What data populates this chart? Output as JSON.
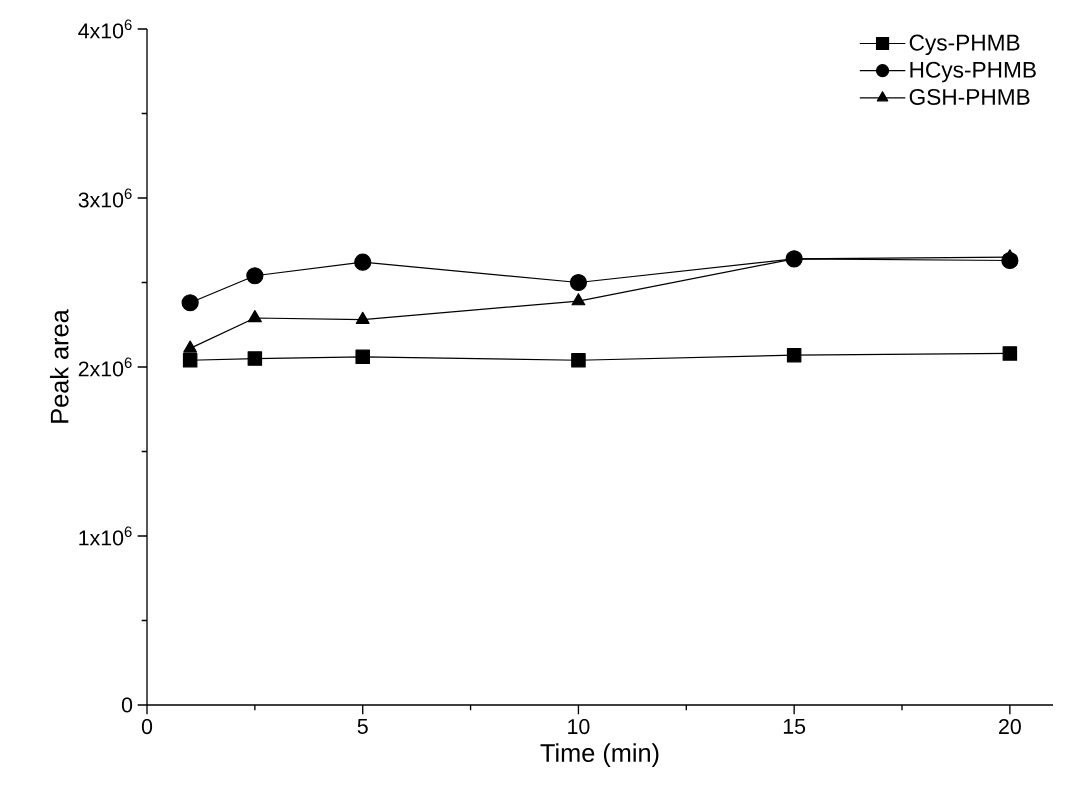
{
  "chart_data": {
    "type": "line",
    "xlabel": "Time (min)",
    "ylabel": "Peak area",
    "x": [
      1,
      2.5,
      5,
      10,
      15,
      20
    ],
    "series": [
      {
        "name": "Cys-PHMB",
        "color": "#000000",
        "marker": "square",
        "values": [
          2040000,
          2050000,
          2060000,
          2040000,
          2070000,
          2080000
        ]
      },
      {
        "name": "HCys-PHMB",
        "color": "#000000",
        "marker": "circle",
        "values": [
          2380000,
          2540000,
          2620000,
          2500000,
          2640000,
          2630000
        ]
      },
      {
        "name": "GSH-PHMB",
        "color": "#000000",
        "marker": "triangle",
        "values": [
          2110000,
          2290000,
          2280000,
          2390000,
          2640000,
          2650000
        ]
      }
    ],
    "xlim": [
      0,
      21
    ],
    "ylim": [
      0,
      4000000
    ],
    "xticks": [
      0,
      {
        "value": 2.5,
        "label": null
      },
      5,
      {
        "value": 7.5,
        "label": null
      },
      10,
      {
        "value": 12.5,
        "label": null
      },
      15,
      {
        "value": 17.5,
        "label": null
      },
      20
    ],
    "yticks": [
      0,
      {
        "value": 500000,
        "label": null
      },
      {
        "value": 1000000,
        "label": "1x10$^{6}$"
      },
      {
        "value": 1500000,
        "label": null
      },
      {
        "value": 2000000,
        "label": "2x10$^{6}$"
      },
      {
        "value": 2500000,
        "label": null
      },
      {
        "value": 3000000,
        "label": "3x10$^{6}$"
      },
      {
        "value": 3500000,
        "label": null
      },
      {
        "value": 4000000,
        "label": "4x10$^{6}$"
      }
    ],
    "legend": "top right",
    "grid": false,
    "line_style": "solid"
  }
}
